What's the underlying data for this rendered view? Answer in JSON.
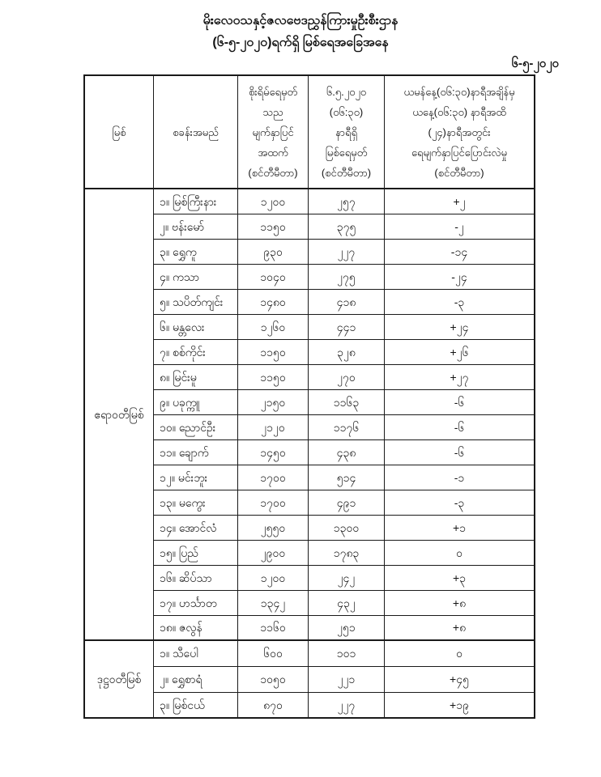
{
  "title": {
    "line1": "မိုးလေဝသနှင့်ဇလဗေဒညွှန်ကြားမှုဦးစီးဌာန",
    "line2": "(၆-၅-၂၀၂၀)ရက်ရှိ မြစ်ရေအခြေအနေ",
    "date": "၆-၅-၂၀၂၀"
  },
  "table": {
    "headers": {
      "river": "မြစ်",
      "station": "စခန်းအမည်",
      "danger_level": "စိုးရိမ်ရေမှတ်\nသည\nမျက်နှာပြင်\nအထက်\n(စင်တီမီတာ)",
      "current_level": "၆.၅.၂၀၂၀\n(၀၆:၃၀)\nနာရီရှိ\nမြစ်ရေမှတ်\n(စင်တီမီတာ)",
      "change_24h": "ယမန်နေ့(၀၆:၃၀)နာရီအချိန်မှ\nယနေ့(၀၆:၃၀) နာရီအထိ\n(၂၄)နာရီအတွင်း\nရေမျက်နှာပြင်ပြောင်းလဲမှု\n(စင်တီမီတာ)"
    },
    "sections": [
      {
        "river": "ဧရာဝတီမြစ်",
        "rows": [
          {
            "name": "၁။ မြစ်ကြီးနား",
            "danger": "၁၂၀၀",
            "level": "၂၅၇",
            "change": "+၂"
          },
          {
            "name": "၂။ ဗန်းမော်",
            "danger": "၁၁၅၀",
            "level": "၃၇၅",
            "change": "-၂"
          },
          {
            "name": "၃။ ရွှေကူ",
            "danger": "၉၃၀",
            "level": "၂၂၇",
            "change": "-၁၄"
          },
          {
            "name": "၄။ ကသာ",
            "danger": "၁၀၄၀",
            "level": "၂၇၅",
            "change": "-၂၄"
          },
          {
            "name": "၅။ သပိတ်ကျင်း",
            "danger": "၁၄၈၀",
            "level": "၄၁၈",
            "change": "-၃"
          },
          {
            "name": "၆။ မန္တလေး",
            "danger": "၁၂၆၀",
            "level": "၄၄၁",
            "change": "+၂၄"
          },
          {
            "name": "၇။ စစ်ကိုင်း",
            "danger": "၁၁၅၀",
            "level": "၃၂၈",
            "change": "+၂၆"
          },
          {
            "name": "၈။ မြင်းမူ",
            "danger": "၁၁၅၀",
            "level": "၂၇၀",
            "change": "+၂၇"
          },
          {
            "name": "၉။ ပခုက္ကူ",
            "danger": "၂၁၅၀",
            "level": "၁၁၆၃",
            "change": "-၆"
          },
          {
            "name": "၁၀။ ညောင်ဦး",
            "danger": "၂၁၂၀",
            "level": "၁၁၇၆",
            "change": "-၆"
          },
          {
            "name": "၁၁။ ချောက်",
            "danger": "၁၄၅၀",
            "level": "၄၃၈",
            "change": "-၆"
          },
          {
            "name": "၁၂။ မင်းဘူး",
            "danger": "၁၇၀၀",
            "level": "၅၁၄",
            "change": "-၁"
          },
          {
            "name": "၁၃။ မကွေး",
            "danger": "၁၇၀၀",
            "level": "၄၉၁",
            "change": "-၃"
          },
          {
            "name": "၁၄။ အောင်လံ",
            "danger": "၂၅၅၀",
            "level": "၁၃၀၀",
            "change": "+၁"
          },
          {
            "name": "၁၅။ ပြည်",
            "danger": "၂၉၀၀",
            "level": "၁၇၈၃",
            "change": "၀"
          },
          {
            "name": "၁၆။ ဆိပ်သာ",
            "danger": "၁၂၀၀",
            "level": "၂၄၂",
            "change": "+၃"
          },
          {
            "name": "၁၇။ ဟင်္သာတ",
            "danger": "၁၃၄၂",
            "level": "၄၃၂",
            "change": "+၈"
          },
          {
            "name": "၁၈။ ဇလွန်",
            "danger": "၁၁၆၀",
            "level": "၂၅၁",
            "change": "+၈"
          }
        ]
      },
      {
        "river": "ဒုဋ္ဌဝတီမြစ်",
        "rows": [
          {
            "name": "၁။ သီပေါ",
            "danger": "၆၀၀",
            "level": "၁၀၁",
            "change": "၀"
          },
          {
            "name": "၂။ ရွှေစာရံ",
            "danger": "၁၀၅၀",
            "level": "၂၂၁",
            "change": "+၄၅"
          },
          {
            "name": "၃။ မြစ်ငယ်",
            "danger": "၈၇၀",
            "level": "၂၂၇",
            "change": "+၁၉"
          }
        ]
      }
    ]
  }
}
